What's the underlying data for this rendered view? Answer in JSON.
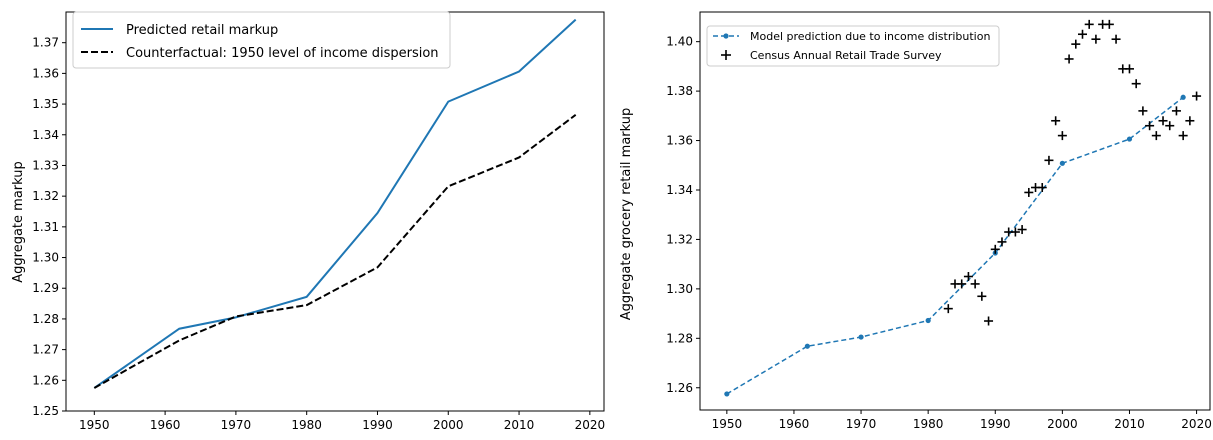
{
  "chart_data": [
    {
      "type": "line",
      "title": "",
      "xlabel": "",
      "ylabel": "Aggregate markup",
      "xlim": [
        1946,
        2022
      ],
      "ylim": [
        1.25,
        1.38
      ],
      "xticks": [
        1950,
        1960,
        1970,
        1980,
        1990,
        2000,
        2010,
        2020
      ],
      "yticks": [
        1.25,
        1.26,
        1.27,
        1.28,
        1.29,
        1.3,
        1.31,
        1.32,
        1.33,
        1.34,
        1.35,
        1.36,
        1.37
      ],
      "xtick_labels": [
        "1950",
        "1960",
        "1970",
        "1980",
        "1990",
        "2000",
        "2010",
        "2020"
      ],
      "ytick_labels": [
        "1.25",
        "1.26",
        "1.27",
        "1.28",
        "1.29",
        "1.30",
        "1.31",
        "1.32",
        "1.33",
        "1.34",
        "1.35",
        "1.36",
        "1.37"
      ],
      "grid": false,
      "legend_position": "top-left",
      "series": [
        {
          "name": "Predicted retail markup",
          "style": "solid",
          "color": "#1f77b4",
          "x": [
            1950,
            1962,
            1970,
            1980,
            1990,
            2000,
            2010,
            2018
          ],
          "y": [
            1.2575,
            1.2768,
            1.2805,
            1.2872,
            1.3145,
            1.3508,
            1.3606,
            1.3775
          ]
        },
        {
          "name": "Counterfactual: 1950 level of income dispersion",
          "style": "dashed",
          "color": "#000000",
          "x": [
            1950,
            1962,
            1970,
            1980,
            1990,
            2000,
            2010,
            2018
          ],
          "y": [
            1.2575,
            1.273,
            1.2808,
            1.2845,
            1.2968,
            1.3232,
            1.3326,
            1.3465
          ]
        }
      ]
    },
    {
      "type": "line",
      "title": "",
      "xlabel": "",
      "ylabel": "Aggregate grocery retail markup",
      "xlim": [
        1946,
        2022
      ],
      "ylim": [
        1.251,
        1.412
      ],
      "xticks": [
        1950,
        1960,
        1970,
        1980,
        1990,
        2000,
        2010,
        2020
      ],
      "yticks": [
        1.26,
        1.28,
        1.3,
        1.32,
        1.34,
        1.36,
        1.38,
        1.4
      ],
      "xtick_labels": [
        "1950",
        "1960",
        "1970",
        "1980",
        "1990",
        "2000",
        "2010",
        "2020"
      ],
      "ytick_labels": [
        "1.26",
        "1.28",
        "1.30",
        "1.32",
        "1.34",
        "1.36",
        "1.38",
        "1.40"
      ],
      "grid": false,
      "legend_position": "top-left",
      "series": [
        {
          "name": "Model prediction due to income distribution",
          "style": "dashed-markers",
          "color": "#1f77b4",
          "x": [
            1950,
            1962,
            1970,
            1980,
            1990,
            2000,
            2010,
            2018
          ],
          "y": [
            1.2575,
            1.2768,
            1.2805,
            1.2872,
            1.3145,
            1.3508,
            1.3606,
            1.3775
          ]
        },
        {
          "name": "Census Annual Retail Trade Survey",
          "style": "plus-markers",
          "color": "#000000",
          "x": [
            1983,
            1984,
            1985,
            1986,
            1987,
            1988,
            1989,
            1990,
            1991,
            1992,
            1993,
            1994,
            1995,
            1996,
            1997,
            1998,
            1999,
            2000,
            2001,
            2002,
            2003,
            2004,
            2005,
            2006,
            2007,
            2008,
            2009,
            2010,
            2011,
            2012,
            2013,
            2014,
            2015,
            2016,
            2017,
            2018,
            2019,
            2020
          ],
          "y": [
            1.292,
            1.302,
            1.302,
            1.305,
            1.302,
            1.297,
            1.287,
            1.316,
            1.319,
            1.323,
            1.323,
            1.324,
            1.339,
            1.341,
            1.341,
            1.352,
            1.368,
            1.362,
            1.393,
            1.399,
            1.403,
            1.407,
            1.401,
            1.407,
            1.407,
            1.401,
            1.389,
            1.389,
            1.383,
            1.372,
            1.366,
            1.362,
            1.368,
            1.366,
            1.372,
            1.362,
            1.368,
            1.378
          ]
        }
      ]
    }
  ]
}
